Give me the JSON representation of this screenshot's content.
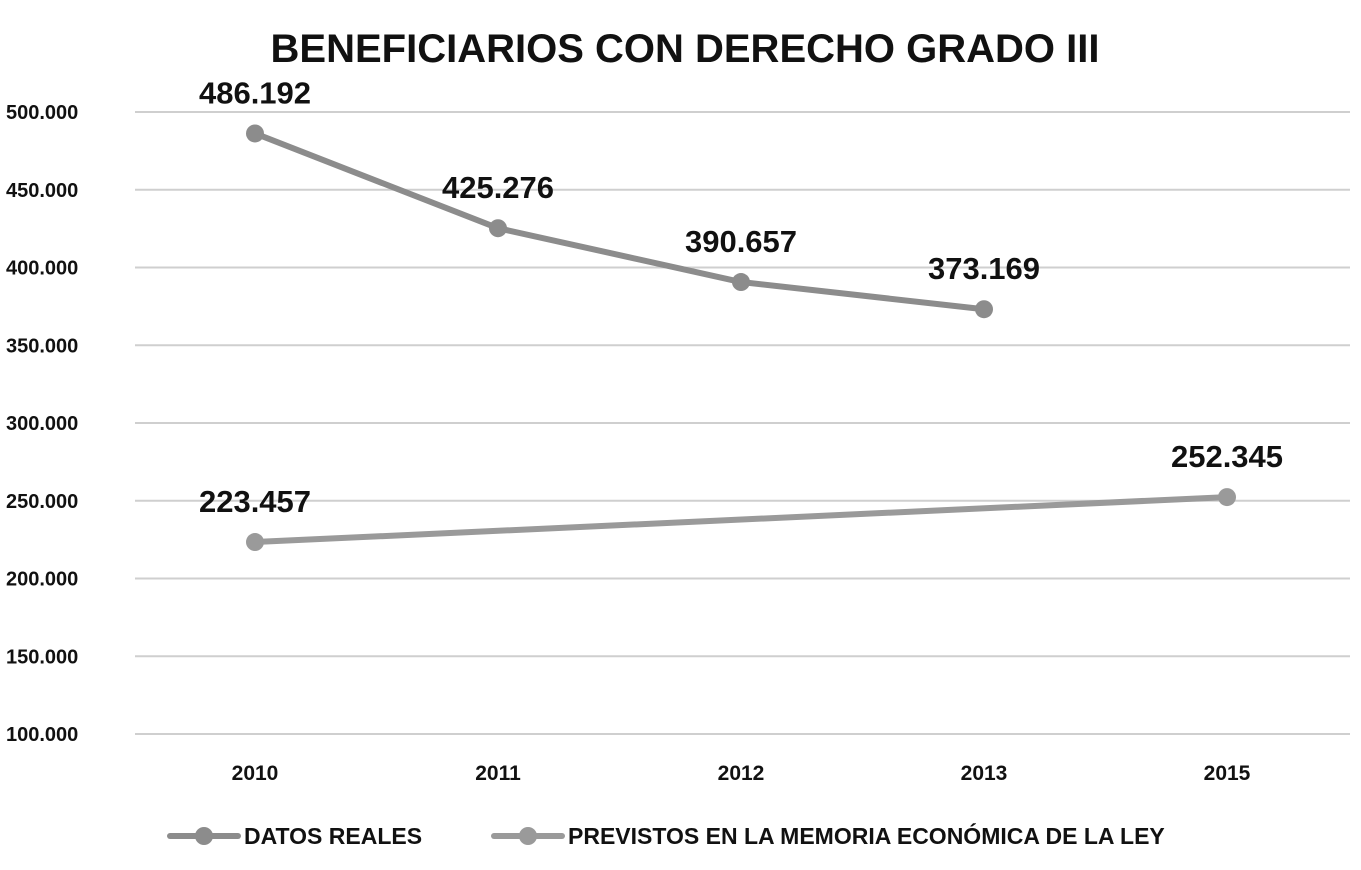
{
  "chart_data": {
    "type": "line",
    "title": "BENEFICIARIOS CON DERECHO GRADO III",
    "xlabel": "",
    "ylabel": "",
    "categories": [
      "2010",
      "2011",
      "2012",
      "2013",
      "2015"
    ],
    "ylim": [
      100000,
      500000
    ],
    "yticks": [
      100000,
      150000,
      200000,
      250000,
      300000,
      350000,
      400000,
      450000,
      500000
    ],
    "ytick_labels": [
      "100.000",
      "150.000",
      "200.000",
      "250.000",
      "300.000",
      "350.000",
      "400.000",
      "450.000",
      "500.000"
    ],
    "grid": true,
    "legend_position": "bottom",
    "series": [
      {
        "name": "DATOS REALES",
        "values": [
          486192,
          425276,
          390657,
          373169,
          null
        ],
        "labels": [
          "486.192",
          "425.276",
          "390.657",
          "373.169",
          ""
        ],
        "color": "#8c8c8c"
      },
      {
        "name": "PREVISTOS EN LA MEMORIA ECONÓMICA DE LA LEY",
        "values": [
          223457,
          null,
          null,
          null,
          252345
        ],
        "labels": [
          "223.457",
          "",
          "",
          "",
          "252.345"
        ],
        "color": "#9a9a9a"
      }
    ]
  }
}
